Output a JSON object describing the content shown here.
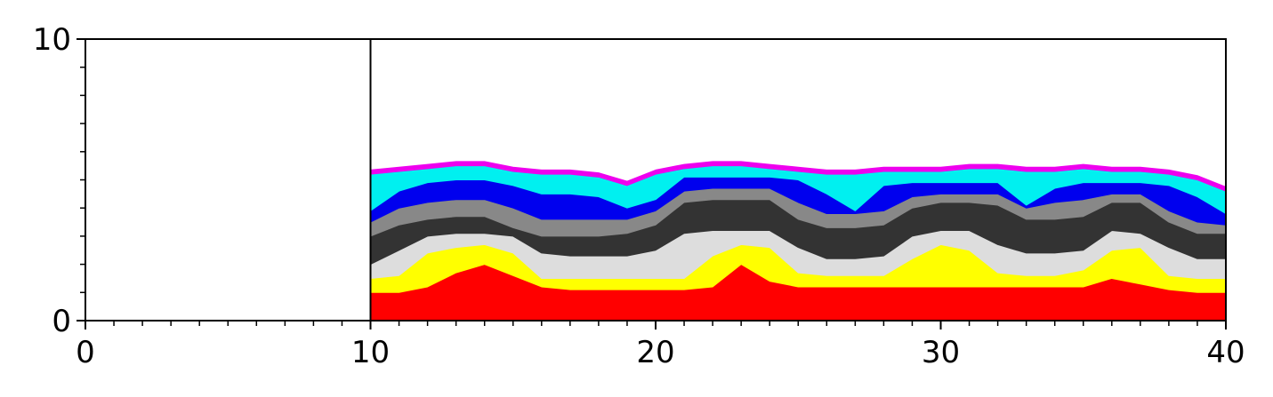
{
  "chart_data": {
    "type": "stacked_area",
    "x": [
      10,
      11,
      12,
      13,
      14,
      15,
      16,
      17,
      18,
      19,
      20,
      21,
      22,
      23,
      24,
      25,
      26,
      27,
      28,
      29,
      30,
      31,
      32,
      33,
      34,
      35,
      36,
      37,
      38,
      39,
      40
    ],
    "series": [
      {
        "color": "#ff0000",
        "values": [
          1.0,
          1.0,
          1.2,
          1.7,
          2.0,
          1.6,
          1.2,
          1.1,
          1.1,
          1.1,
          1.1,
          1.1,
          1.2,
          2.0,
          1.4,
          1.2,
          1.2,
          1.2,
          1.2,
          1.2,
          1.2,
          1.2,
          1.2,
          1.2,
          1.2,
          1.2,
          1.5,
          1.3,
          1.1,
          1.0,
          1.0
        ]
      },
      {
        "color": "#ffff00",
        "values": [
          0.5,
          0.6,
          1.2,
          0.9,
          0.7,
          0.8,
          0.3,
          0.4,
          0.4,
          0.4,
          0.4,
          0.4,
          1.1,
          0.7,
          1.2,
          0.5,
          0.4,
          0.4,
          0.4,
          1.0,
          1.5,
          1.3,
          0.5,
          0.4,
          0.4,
          0.6,
          1.0,
          1.3,
          0.5,
          0.5,
          0.5
        ]
      },
      {
        "color": "#dddddd",
        "values": [
          0.5,
          0.9,
          0.6,
          0.5,
          0.4,
          0.6,
          0.9,
          0.8,
          0.8,
          0.8,
          1.0,
          1.6,
          0.9,
          0.5,
          0.6,
          0.9,
          0.6,
          0.6,
          0.7,
          0.8,
          0.5,
          0.7,
          1.0,
          0.8,
          0.8,
          0.7,
          0.7,
          0.5,
          1.0,
          0.7,
          0.7
        ]
      },
      {
        "color": "#333333",
        "values": [
          1.0,
          0.9,
          0.6,
          0.6,
          0.6,
          0.3,
          0.6,
          0.7,
          0.7,
          0.8,
          0.9,
          1.1,
          1.1,
          1.1,
          1.1,
          1.0,
          1.1,
          1.1,
          1.1,
          1.0,
          1.0,
          1.0,
          1.4,
          1.2,
          1.2,
          1.2,
          1.0,
          1.1,
          0.9,
          0.9,
          0.9
        ]
      },
      {
        "color": "#888888",
        "values": [
          0.5,
          0.6,
          0.6,
          0.6,
          0.6,
          0.7,
          0.6,
          0.6,
          0.6,
          0.5,
          0.5,
          0.4,
          0.4,
          0.4,
          0.4,
          0.6,
          0.5,
          0.5,
          0.5,
          0.4,
          0.3,
          0.3,
          0.4,
          0.4,
          0.6,
          0.6,
          0.3,
          0.3,
          0.4,
          0.4,
          0.3
        ]
      },
      {
        "color": "#0000ee",
        "values": [
          0.4,
          0.6,
          0.7,
          0.7,
          0.7,
          0.8,
          0.9,
          0.9,
          0.8,
          0.4,
          0.4,
          0.5,
          0.4,
          0.4,
          0.4,
          0.8,
          0.7,
          0.1,
          0.9,
          0.5,
          0.4,
          0.4,
          0.4,
          0.1,
          0.5,
          0.6,
          0.4,
          0.4,
          0.9,
          0.9,
          0.4
        ]
      },
      {
        "color": "#00f0f0",
        "values": [
          1.3,
          0.7,
          0.5,
          0.5,
          0.5,
          0.5,
          0.7,
          0.7,
          0.7,
          0.8,
          0.9,
          0.3,
          0.4,
          0.4,
          0.3,
          0.3,
          0.7,
          1.3,
          0.5,
          0.4,
          0.4,
          0.5,
          0.5,
          1.2,
          0.6,
          0.5,
          0.4,
          0.4,
          0.4,
          0.6,
          0.8
        ]
      },
      {
        "color": "#ee00ee",
        "values": [
          0.15,
          0.15,
          0.15,
          0.15,
          0.15,
          0.15,
          0.15,
          0.15,
          0.15,
          0.15,
          0.15,
          0.15,
          0.15,
          0.15,
          0.15,
          0.15,
          0.15,
          0.15,
          0.15,
          0.15,
          0.15,
          0.15,
          0.15,
          0.15,
          0.15,
          0.15,
          0.15,
          0.15,
          0.15,
          0.15,
          0.15
        ]
      }
    ],
    "xlim": [
      0,
      40
    ],
    "ylim": [
      0,
      10
    ],
    "xticks": [
      0,
      10,
      20,
      30,
      40
    ],
    "yticks": [
      0,
      10
    ],
    "xminorticks": [
      1,
      2,
      3,
      4,
      5,
      6,
      7,
      8,
      9,
      11,
      12,
      13,
      14,
      15,
      16,
      17,
      18,
      19,
      21,
      22,
      23,
      24,
      25,
      26,
      27,
      28,
      29,
      31,
      32,
      33,
      34,
      35,
      36,
      37,
      38,
      39
    ],
    "yminorticks": [
      1,
      2,
      3,
      4,
      5,
      6,
      7,
      8,
      9
    ]
  }
}
